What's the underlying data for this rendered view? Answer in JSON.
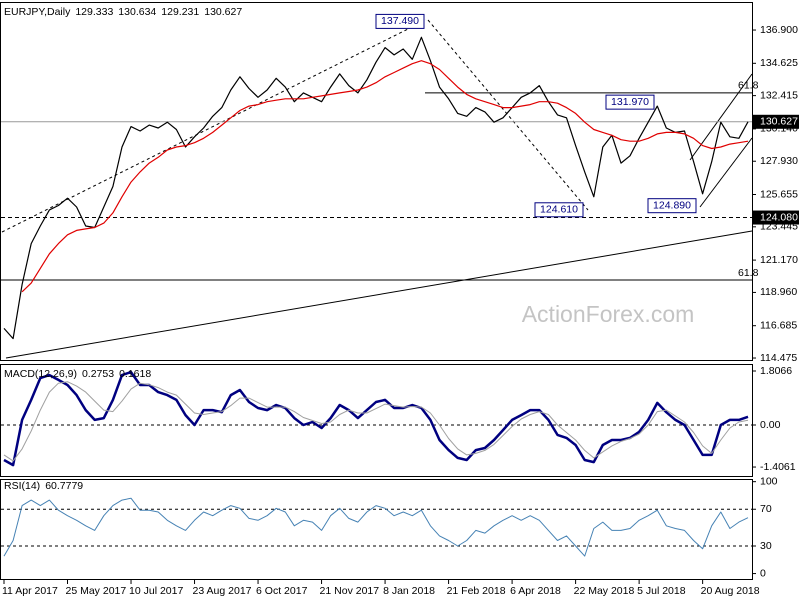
{
  "chart_data": [
    {
      "type": "line",
      "title": "EURJPY,Daily",
      "ohlc": [
        129.333,
        130.634,
        129.231,
        130.627
      ],
      "categories": [
        "11 Apr 2017",
        null,
        null,
        null,
        null,
        null,
        null,
        "25 May 2017",
        null,
        null,
        null,
        null,
        null,
        null,
        "10 Jul 2017",
        null,
        null,
        null,
        null,
        null,
        null,
        "23 Aug 2017",
        null,
        null,
        null,
        null,
        null,
        null,
        "6 Oct 2017",
        null,
        null,
        null,
        null,
        null,
        null,
        "21 Nov 2017",
        null,
        null,
        null,
        null,
        null,
        null,
        "8 Jan 2018",
        null,
        null,
        null,
        null,
        null,
        null,
        "21 Feb 2018",
        null,
        null,
        null,
        null,
        null,
        null,
        "6 Apr 2018",
        null,
        null,
        null,
        null,
        null,
        null,
        "22 May 2018",
        null,
        null,
        null,
        null,
        null,
        null,
        "5 Jul 2018",
        null,
        null,
        null,
        null,
        null,
        null,
        "20 Aug 2018",
        null,
        null,
        null,
        null,
        null
      ],
      "series": [
        {
          "color": "#000000",
          "values": [
            116.5,
            115.8,
            119.5,
            122.3,
            123.5,
            124.6,
            124.9,
            125.4,
            124.8,
            123.5,
            123.4,
            124.8,
            126.2,
            128.9,
            130.3,
            130.0,
            130.4,
            130.2,
            130.6,
            130.1,
            128.9,
            129.6,
            130.2,
            131.0,
            131.6,
            132.8,
            133.7,
            132.9,
            132.3,
            132.8,
            133.6,
            133.0,
            132.0,
            132.6,
            132.3,
            132.0,
            133.0,
            133.9,
            133.1,
            132.6,
            133.5,
            134.7,
            135.7,
            135.2,
            135.6,
            134.9,
            136.4,
            134.8,
            133.0,
            132.2,
            131.2,
            131.0,
            131.6,
            131.3,
            130.6,
            130.9,
            131.6,
            132.3,
            132.6,
            133.1,
            132.0,
            131.1,
            130.9,
            129.0,
            127.2,
            125.5,
            128.9,
            129.7,
            127.8,
            128.3,
            129.5,
            130.6,
            131.7,
            130.2,
            129.9,
            130.0,
            127.9,
            125.7,
            127.9,
            130.6,
            129.6,
            129.5,
            130.627
          ]
        },
        {
          "color": "#e00000",
          "values": [
            null,
            null,
            119.0,
            119.6,
            120.6,
            121.6,
            122.3,
            122.9,
            123.2,
            123.3,
            123.4,
            123.7,
            124.4,
            125.5,
            126.5,
            127.2,
            127.8,
            128.2,
            128.7,
            128.9,
            129.0,
            129.2,
            129.5,
            129.9,
            130.4,
            130.9,
            131.4,
            131.7,
            131.8,
            132.0,
            132.1,
            132.2,
            132.2,
            132.2,
            132.3,
            132.4,
            132.5,
            132.6,
            132.7,
            132.8,
            133.0,
            133.3,
            133.7,
            134.0,
            134.3,
            134.6,
            134.8,
            134.6,
            134.2,
            133.6,
            133.0,
            132.5,
            132.2,
            132.0,
            131.8,
            131.6,
            131.6,
            131.7,
            131.8,
            132.0,
            132.0,
            131.9,
            131.6,
            131.2,
            130.6,
            130.1,
            129.9,
            129.7,
            129.4,
            129.3,
            129.3,
            129.5,
            129.8,
            129.9,
            129.9,
            129.8,
            129.5,
            129.0,
            128.8,
            128.9,
            129.1,
            129.2,
            129.3
          ]
        }
      ],
      "ylim": [
        114.34,
        138.68
      ],
      "yticks": [
        {
          "value": 136.9,
          "label": "136.900"
        },
        134.625,
        132.415,
        {
          "value": 130.14,
          "label": "130.140"
        },
        {
          "value": 127.93,
          "label": "127.930"
        },
        125.655,
        123.445,
        {
          "value": 121.17,
          "label": "121.170"
        },
        {
          "value": 118.96,
          "label": "118.960"
        },
        116.685,
        114.475
      ],
      "levels": [
        {
          "value": 130.627,
          "label": "130.627",
          "style": "solid"
        },
        {
          "value": 124.08,
          "label": "124.080",
          "style": "dashed"
        }
      ],
      "fib_levels": [
        {
          "price": 132.6,
          "text": "61.8"
        },
        {
          "price": 119.81,
          "text": "61.8"
        }
      ],
      "annotations": [
        {
          "value": 137.49,
          "label": "137.490"
        },
        {
          "value": 131.97,
          "label": "131.970"
        },
        {
          "value": 124.61,
          "label": "124.610"
        },
        {
          "value": 124.89,
          "label": "124.890"
        }
      ],
      "watermark": "ActionForex.com"
    },
    {
      "type": "line",
      "title": "MACD(12,26,9)",
      "current": [
        0.2753,
        0.1618
      ],
      "series": [
        {
          "color": "#000080",
          "values": [
            -1.17,
            -1.34,
            0.17,
            0.84,
            1.57,
            1.67,
            1.51,
            1.34,
            1.0,
            0.5,
            0.17,
            0.23,
            0.84,
            1.67,
            1.77,
            1.34,
            1.34,
            1.1,
            1.0,
            0.84,
            0.33,
            0.0,
            0.5,
            0.5,
            0.43,
            1.0,
            1.17,
            0.77,
            0.57,
            0.5,
            0.67,
            0.57,
            0.23,
            0.0,
            0.1,
            -0.1,
            0.23,
            0.67,
            0.5,
            0.23,
            0.5,
            0.77,
            0.84,
            0.57,
            0.57,
            0.67,
            0.57,
            0.17,
            -0.5,
            -0.84,
            -1.1,
            -1.17,
            -0.84,
            -0.77,
            -0.5,
            -0.17,
            0.17,
            0.33,
            0.5,
            0.5,
            0.17,
            -0.33,
            -0.43,
            -0.67,
            -1.17,
            -1.24,
            -0.67,
            -0.5,
            -0.5,
            -0.43,
            -0.23,
            0.17,
            0.74,
            0.43,
            0.17,
            0.0,
            -0.5,
            -1.0,
            -1.0,
            0.0,
            0.17,
            0.17,
            0.2753
          ]
        },
        {
          "color": "#a0a0a0",
          "values": [
            -1.0,
            -1.2,
            -0.8,
            -0.2,
            0.5,
            1.1,
            1.4,
            1.45,
            1.3,
            1.1,
            0.8,
            0.5,
            0.45,
            0.8,
            1.2,
            1.4,
            1.35,
            1.25,
            1.1,
            1.0,
            0.7,
            0.4,
            0.35,
            0.4,
            0.45,
            0.65,
            0.9,
            0.9,
            0.75,
            0.6,
            0.6,
            0.6,
            0.45,
            0.25,
            0.15,
            0.05,
            0.1,
            0.35,
            0.5,
            0.4,
            0.4,
            0.55,
            0.7,
            0.65,
            0.6,
            0.62,
            0.6,
            0.4,
            0.0,
            -0.45,
            -0.8,
            -1.0,
            -0.95,
            -0.85,
            -0.65,
            -0.35,
            -0.05,
            0.2,
            0.35,
            0.45,
            0.35,
            0.0,
            -0.25,
            -0.5,
            -0.85,
            -1.1,
            -0.9,
            -0.7,
            -0.55,
            -0.45,
            -0.3,
            0.0,
            0.45,
            0.5,
            0.3,
            0.1,
            -0.25,
            -0.7,
            -0.95,
            -0.5,
            -0.1,
            0.1,
            0.1618
          ]
        }
      ],
      "ylim": [
        -1.706,
        1.974
      ],
      "yticks": [
        1.8066,
        {
          "value": 0,
          "label": "0.00"
        },
        -1.4061
      ],
      "levels": [
        0
      ]
    },
    {
      "type": "line",
      "title": "RSI(14)",
      "current": 60.7779,
      "series": [
        {
          "color": "#4682b4",
          "values": [
            19,
            36,
            74,
            80,
            74,
            80,
            69,
            63,
            58,
            52,
            47,
            63,
            74,
            80,
            82,
            69,
            69,
            67,
            58,
            52,
            47,
            58,
            67,
            63,
            69,
            74,
            71,
            60,
            58,
            63,
            71,
            67,
            52,
            58,
            56,
            47,
            63,
            71,
            60,
            56,
            67,
            74,
            71,
            63,
            67,
            63,
            69,
            52,
            41,
            36,
            30,
            36,
            47,
            44,
            52,
            58,
            63,
            58,
            63,
            58,
            47,
            36,
            41,
            30,
            19,
            49,
            56,
            47,
            47,
            49,
            58,
            63,
            69,
            52,
            49,
            47,
            36,
            27,
            52,
            67,
            49,
            56,
            60.7779
          ]
        }
      ],
      "ylim": [
        -7,
        104
      ],
      "yticks": [
        100,
        70,
        30,
        0
      ],
      "levels": [
        70,
        30
      ]
    }
  ]
}
